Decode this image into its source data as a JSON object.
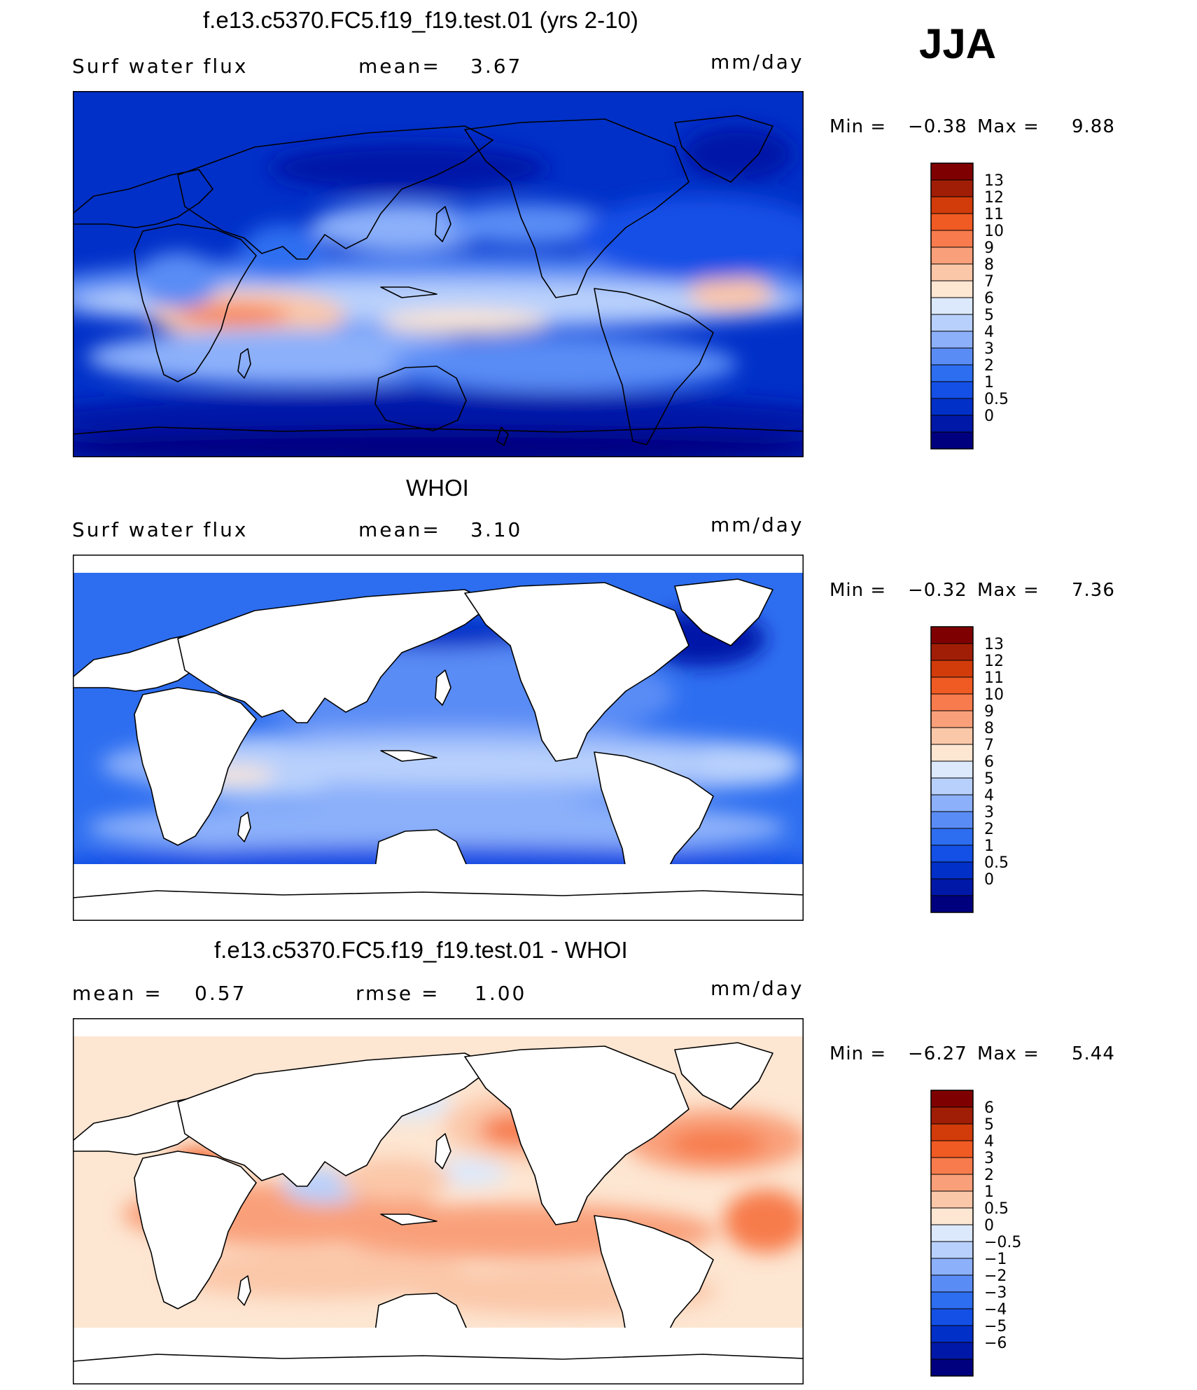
{
  "season": "JJA",
  "panels": [
    {
      "title": "f.e13.c5370.FC5.f19_f19.test.01 (yrs 2-10)",
      "left_label": "Surf water flux",
      "mid_label": "mean=",
      "mid_value": "3.67",
      "units": "mm/day",
      "min_label": "Min =",
      "min_value": "−0.38",
      "max_label": "Max =",
      "max_value": "9.88",
      "land_masked": false
    },
    {
      "title": "WHOI",
      "left_label": "Surf water flux",
      "mid_label": "mean=",
      "mid_value": "3.10",
      "units": "mm/day",
      "min_label": "Min =",
      "min_value": "−0.32",
      "max_label": "Max =",
      "max_value": "7.36",
      "land_masked": true
    },
    {
      "title": "f.e13.c5370.FC5.f19_f19.test.01 - WHOI",
      "left_label": "mean =",
      "left_value": "0.57",
      "mid_label": "rmse =",
      "mid_value": "1.00",
      "units": "mm/day",
      "min_label": "Min =",
      "min_value": "−6.27",
      "max_label": "Max =",
      "max_value": "5.44",
      "land_masked": true
    }
  ],
  "chart_data": [
    {
      "type": "heatmap",
      "title": "f.e13.c5370.FC5.f19_f19.test.01 (yrs 2-10)",
      "variable": "Surf water flux",
      "units": "mm/day",
      "mean": 3.67,
      "min": -0.38,
      "max": 9.88,
      "colorbar_levels": [
        "0",
        "0.5",
        "1",
        "2",
        "3",
        "4",
        "5",
        "6",
        "7",
        "8",
        "9",
        "10",
        "11",
        "12",
        "13"
      ],
      "colorbar_colors": [
        "#00007f",
        "#0018a8",
        "#0030c8",
        "#1450e6",
        "#2d6ef0",
        "#5a8cf5",
        "#8cb0fa",
        "#b8d0fc",
        "#dce9fd",
        "#fde6d2",
        "#fbc7a9",
        "#f9a07a",
        "#f77b4c",
        "#f05a23",
        "#d23c0a",
        "#a01e05",
        "#7f0000"
      ]
    },
    {
      "type": "heatmap",
      "title": "WHOI",
      "variable": "Surf water flux",
      "units": "mm/day",
      "mean": 3.1,
      "min": -0.32,
      "max": 7.36,
      "colorbar_levels": [
        "0",
        "0.5",
        "1",
        "2",
        "3",
        "4",
        "5",
        "6",
        "7",
        "8",
        "9",
        "10",
        "11",
        "12",
        "13"
      ],
      "colorbar_colors": [
        "#00007f",
        "#0018a8",
        "#0030c8",
        "#1450e6",
        "#2d6ef0",
        "#5a8cf5",
        "#8cb0fa",
        "#b8d0fc",
        "#dce9fd",
        "#fde6d2",
        "#fbc7a9",
        "#f9a07a",
        "#f77b4c",
        "#f05a23",
        "#d23c0a",
        "#a01e05",
        "#7f0000"
      ]
    },
    {
      "type": "heatmap",
      "title": "f.e13.c5370.FC5.f19_f19.test.01 - WHOI",
      "units": "mm/day",
      "mean": 0.57,
      "rmse": 1.0,
      "min": -6.27,
      "max": 5.44,
      "colorbar_levels": [
        "−6",
        "−5",
        "−4",
        "−3",
        "−2",
        "−1",
        "−0.5",
        "0",
        "0.5",
        "1",
        "2",
        "3",
        "4",
        "5",
        "6"
      ],
      "colorbar_colors": [
        "#00007f",
        "#0018a8",
        "#0030c8",
        "#1450e6",
        "#2d6ef0",
        "#5a8cf5",
        "#8cb0fa",
        "#b8d0fc",
        "#dce9fd",
        "#fde6d2",
        "#fbc7a9",
        "#f9a07a",
        "#f77b4c",
        "#f05a23",
        "#d23c0a",
        "#a01e05",
        "#7f0000"
      ]
    }
  ]
}
